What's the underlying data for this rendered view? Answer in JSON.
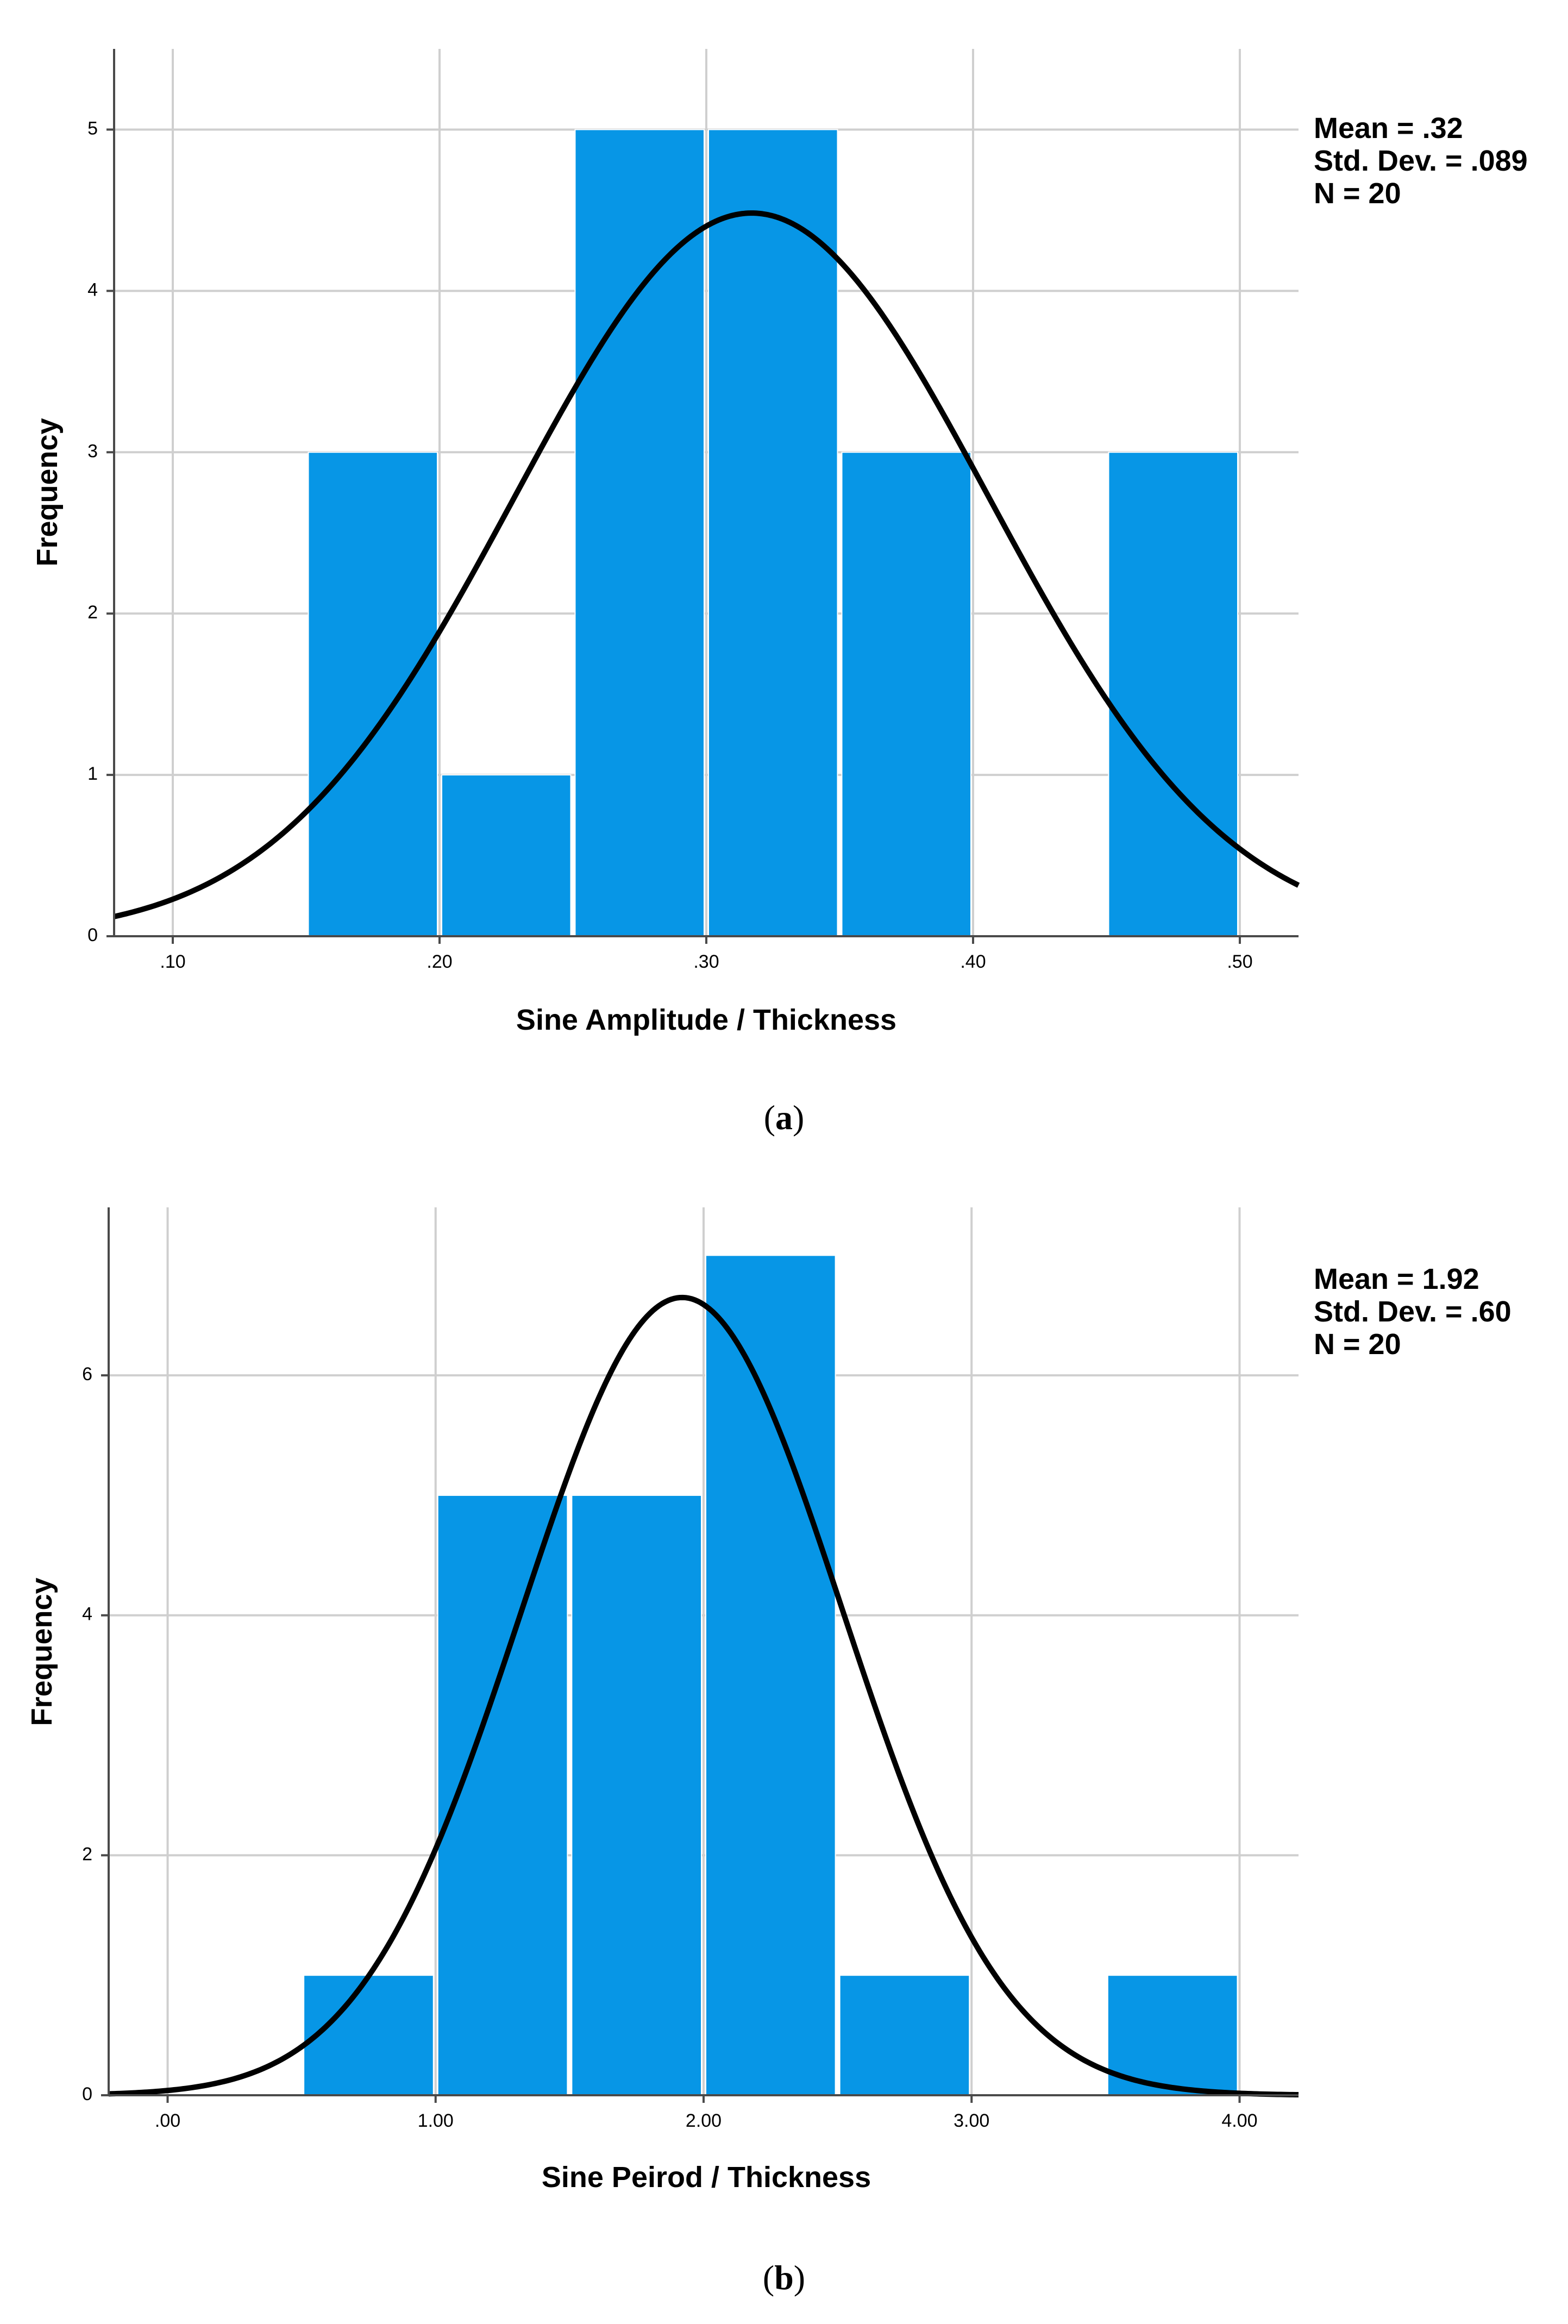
{
  "colors": {
    "bar_fill": "#0796e6",
    "bar_gap": "#ffffff",
    "curve": "#000000",
    "grid": "#cfcfcf",
    "axis": "#4a4a4a"
  },
  "chart_data": [
    {
      "type": "bar",
      "panel": "a",
      "caption_open": "(",
      "caption_letter": "a",
      "caption_close": ")",
      "title": "",
      "xlabel": "Sine Amplitude / Thickness",
      "ylabel": "Frequency",
      "xlim": [
        0.078,
        0.522
      ],
      "ylim": [
        0,
        5.5
      ],
      "grid": true,
      "legend": "none",
      "xticks": [
        0.1,
        0.2,
        0.3,
        0.4,
        0.5
      ],
      "xtick_labels": [
        ".10",
        ".20",
        ".30",
        ".40",
        ".50"
      ],
      "yticks": [
        0,
        1,
        2,
        3,
        4,
        5
      ],
      "ytick_labels": [
        "0",
        "1",
        "2",
        "3",
        "4",
        "5"
      ],
      "bins": [
        {
          "from": 0.15,
          "to": 0.2,
          "count": 3
        },
        {
          "from": 0.2,
          "to": 0.25,
          "count": 1
        },
        {
          "from": 0.25,
          "to": 0.3,
          "count": 5
        },
        {
          "from": 0.3,
          "to": 0.35,
          "count": 5
        },
        {
          "from": 0.35,
          "to": 0.4,
          "count": 3
        },
        {
          "from": 0.45,
          "to": 0.5,
          "count": 3
        }
      ],
      "normal_curve": {
        "mean": 0.317,
        "sd": 0.089,
        "n": 20,
        "bin_width": 0.05
      },
      "stats": [
        "Mean = .32",
        "Std. Dev. = .089",
        "N = 20"
      ]
    },
    {
      "type": "bar",
      "panel": "b",
      "caption_open": "(",
      "caption_letter": "b",
      "caption_close": ")",
      "title": "",
      "xlabel": "Sine Peirod / Thickness",
      "ylabel": "Frequency",
      "xlim": [
        -0.22,
        4.22
      ],
      "ylim": [
        0,
        7.4
      ],
      "grid": true,
      "legend": "none",
      "xticks": [
        0,
        1,
        2,
        3,
        4
      ],
      "xtick_labels": [
        ".00",
        "1.00",
        "2.00",
        "3.00",
        "4.00"
      ],
      "yticks": [
        0,
        2,
        4,
        6
      ],
      "ytick_labels": [
        "0",
        "2",
        "4",
        "6"
      ],
      "bins": [
        {
          "from": 0.5,
          "to": 1.0,
          "count": 1
        },
        {
          "from": 1.0,
          "to": 1.5,
          "count": 5
        },
        {
          "from": 1.5,
          "to": 2.0,
          "count": 5
        },
        {
          "from": 2.0,
          "to": 2.5,
          "count": 7
        },
        {
          "from": 2.5,
          "to": 3.0,
          "count": 1
        },
        {
          "from": 3.5,
          "to": 4.0,
          "count": 1
        }
      ],
      "normal_curve": {
        "mean": 1.92,
        "sd": 0.6,
        "n": 20,
        "bin_width": 0.5
      },
      "stats": [
        "Mean = 1.92",
        "Std. Dev. = .60",
        "N = 20"
      ]
    }
  ]
}
